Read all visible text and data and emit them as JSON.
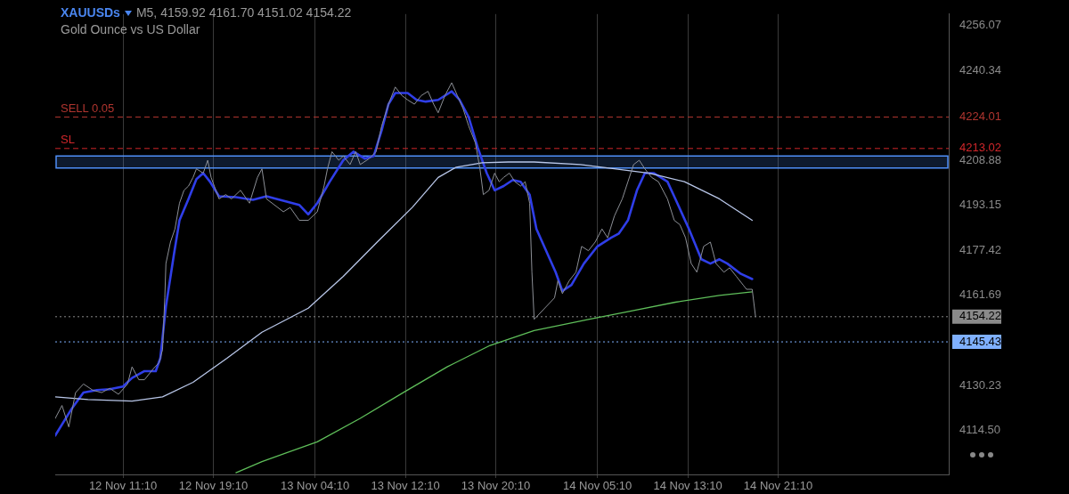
{
  "chart_data": {
    "type": "line",
    "title": "XAUUSDs",
    "subtitle": "Gold Ounce vs US Dollar",
    "annotations": [
      "M5, 4159.92 4161.70 4151.02 4154.22"
    ],
    "xlim": [
      "--11-12T05:10",
      "--11-15T12:16"
    ],
    "xticks": [
      {
        "value": "--11-12T11:10",
        "label": "12 Nov 11:10"
      },
      {
        "value": "--11-12T19:10",
        "label": "12 Nov 19:10"
      },
      {
        "value": "--11-13T04:10",
        "label": "13 Nov 04:10"
      },
      {
        "value": "--11-13T12:10",
        "label": "13 Nov 12:10"
      },
      {
        "value": "--11-13T20:10",
        "label": "13 Nov 20:10"
      },
      {
        "value": "--11-14T05:10",
        "label": "14 Nov 05:10"
      },
      {
        "value": "--11-14T13:10",
        "label": "14 Nov 13:10"
      },
      {
        "value": "--11-14T21:10",
        "label": "14 Nov 21:10"
      }
    ],
    "ylim": [
      4099.1,
      4260.0
    ],
    "yticks": [
      {
        "value": 4114.5,
        "label": "4114.50"
      },
      4130.23,
      4145.43,
      4154.22,
      4161.69,
      4177.42,
      4193.15,
      4208.88,
      4213.02,
      4224.01,
      4240.34,
      4256.07
    ],
    "grid": "x",
    "legend": false,
    "marker": "none",
    "line_style": "solid",
    "series": [
      {
        "color": "#8c8f96",
        "x": [
          "--11-12T05:10",
          "--11-12T05:46",
          "--11-12T06:22",
          "--11-12T06:58",
          "--11-12T07:40",
          "--11-12T08:28",
          "--11-12T09:16",
          "--11-12T10:00",
          "--11-12T10:46",
          "--11-12T11:34",
          "--11-12T11:58",
          "--11-12T12:34",
          "--11-12T13:04",
          "--11-12T13:52",
          "--11-12T14:22",
          "--11-12T14:40",
          "--11-12T14:52",
          "--11-12T14:58",
          "--11-12T15:22",
          "--11-12T15:46",
          "--11-12T16:10",
          "--11-12T16:34",
          "--11-12T16:58",
          "--11-12T17:22",
          "--11-12T17:40",
          "--11-12T18:16",
          "--11-12T18:40",
          "--11-12T18:58",
          "--11-12T19:40",
          "--11-12T20:16",
          "--11-12T20:46",
          "--11-12T21:34",
          "--11-12T22:22",
          "--11-12T23:04",
          "--11-12T23:28",
          "--11-12T23:52",
          "--11-13T01:22",
          "--11-13T01:58",
          "--11-13T02:46",
          "--11-13T03:34",
          "--11-13T04:22",
          "--11-13T04:58",
          "--11-13T05:16",
          "--11-13T05:40",
          "--11-13T06:16",
          "--11-13T06:40",
          "--11-13T07:16",
          "--11-13T07:46",
          "--11-13T08:10",
          "--11-13T08:58",
          "--11-13T09:34",
          "--11-13T10:04",
          "--11-13T10:40",
          "--11-13T11:16",
          "--11-13T11:52",
          "--11-13T12:22",
          "--11-13T12:58",
          "--11-13T13:34",
          "--11-13T14:10",
          "--11-13T14:40",
          "--11-13T15:04",
          "--11-13T15:40",
          "--11-13T16:16",
          "--11-13T16:46",
          "--11-13T17:16",
          "--11-13T17:46",
          "--11-13T18:22",
          "--11-13T18:46",
          "--11-13T19:04",
          "--11-13T19:34",
          "--11-13T20:04",
          "--11-13T20:28",
          "--11-13T20:52",
          "--11-13T21:22",
          "--11-13T21:52",
          "--11-13T22:22",
          "--11-13T22:46",
          "--11-13T23:10",
          "--11-13T23:22",
          "--11-13T23:34",
          "--11-14T01:22",
          "--11-14T01:40",
          "--11-14T02:04",
          "--11-14T02:40",
          "--11-14T03:16",
          "--11-14T03:46",
          "--11-14T04:22",
          "--11-14T04:58",
          "--11-14T05:34",
          "--11-14T06:04",
          "--11-14T06:40",
          "--11-14T07:22",
          "--11-14T07:52",
          "--11-14T08:22",
          "--11-14T08:52",
          "--11-14T09:22",
          "--11-14T09:58",
          "--11-14T10:34",
          "--11-14T11:22",
          "--11-14T11:58",
          "--11-14T12:28",
          "--11-14T12:58",
          "--11-14T13:28",
          "--11-14T13:58",
          "--11-14T14:34",
          "--11-14T15:10",
          "--11-14T15:40",
          "--11-14T16:22",
          "--11-14T16:52",
          "--11-14T17:28",
          "--11-14T18:04",
          "--11-14T18:22",
          "--11-14T18:52",
          "--11-14T19:10"
        ],
        "values": [
          4118.7,
          4123.2,
          4115.7,
          4127.7,
          4130.7,
          4128.6,
          4127.7,
          4129.2,
          4127.1,
          4130.7,
          4136.7,
          4132.2,
          4132.2,
          4136.1,
          4138.2,
          4142.7,
          4160.8,
          4172.8,
          4180.3,
          4184.9,
          4193.9,
          4198.4,
          4199.9,
          4202.9,
          4205.9,
          4204.4,
          4208.9,
          4202.9,
          4195.4,
          4196.9,
          4195.4,
          4198.4,
          4193.9,
          4202.9,
          4205.9,
          4195.4,
          4190.9,
          4192.4,
          4187.9,
          4187.9,
          4190.9,
          4199.9,
          4205.9,
          4211.9,
          4208.9,
          4210.4,
          4207.4,
          4211.9,
          4207.4,
          4209.5,
          4211.9,
          4220.9,
          4228.5,
          4234.5,
          4231.5,
          4230.0,
          4228.5,
          4231.5,
          4233.0,
          4228.5,
          4225.5,
          4231.5,
          4236.0,
          4231.5,
          4227.0,
          4220.9,
          4214.9,
          4205.9,
          4196.9,
          4198.4,
          4204.4,
          4201.4,
          4202.9,
          4204.4,
          4201.4,
          4199.9,
          4201.4,
          4193.9,
          4169.8,
          4153.3,
          4160.8,
          4166.8,
          4162.3,
          4166.8,
          4169.8,
          4178.8,
          4177.3,
          4180.3,
          4184.9,
          4181.8,
          4189.4,
          4195.4,
          4201.4,
          4207.4,
          4208.9,
          4205.9,
          4202.9,
          4201.4,
          4195.4,
          4187.9,
          4186.4,
          4181.8,
          4172.8,
          4169.8,
          4178.8,
          4180.3,
          4172.8,
          4169.8,
          4171.3,
          4168.3,
          4165.3,
          4163.8,
          4163.8,
          4154.2
        ]
      },
      {
        "color": "#b8c6e8",
        "x": [
          "--11-12T05:10",
          "--11-12T08:04",
          "--11-12T11:58",
          "--11-12T14:40",
          "--11-12T17:22",
          "--11-12T20:22",
          "--11-12T23:28",
          "--11-13T03:34",
          "--11-13T06:40",
          "--11-13T09:40",
          "--11-13T12:46",
          "--11-13T15:04",
          "--11-13T16:40",
          "--11-13T18:58",
          "--11-13T21:16",
          "--11-13T23:34",
          "--11-14T03:40",
          "--11-14T06:40",
          "--11-14T09:46",
          "--11-14T12:52",
          "--11-14T15:58",
          "--11-14T18:52"
        ],
        "values": [
          4126.2,
          4125.3,
          4124.7,
          4126.2,
          4131.3,
          4139.7,
          4148.8,
          4157.2,
          4168.3,
          4180.3,
          4192.4,
          4202.9,
          4206.5,
          4208.0,
          4208.3,
          4208.3,
          4207.4,
          4205.9,
          4204.4,
          4201.4,
          4195.4,
          4187.9
        ]
      },
      {
        "color": "#5fbf5a",
        "x": [
          "--11-12T21:10",
          "--11-12T23:28",
          "--11-13T04:22",
          "--11-13T08:10",
          "--11-13T11:58",
          "--11-13T15:52",
          "--11-13T19:40",
          "--11-13T23:34",
          "--11-14T04:22",
          "--11-14T08:16",
          "--11-14T12:04",
          "--11-14T15:58",
          "--11-14T18:52"
        ],
        "values": [
          4099.7,
          4103.6,
          4110.5,
          4118.7,
          4127.7,
          4136.7,
          4144.2,
          4149.4,
          4153.3,
          4156.3,
          4159.3,
          4161.7,
          4162.9
        ]
      },
      {
        "color": "#2f3ee8",
        "x": [
          "--11-12T05:10",
          "--11-12T06:34",
          "--11-12T07:40",
          "--11-12T08:52",
          "--11-12T10:00",
          "--11-12T11:10",
          "--11-12T11:58",
          "--11-12T13:04",
          "--11-12T14:04",
          "--11-12T14:28",
          "--11-12T14:58",
          "--11-12T15:40",
          "--11-12T16:10",
          "--11-12T16:58",
          "--11-12T17:40",
          "--11-12T18:16",
          "--11-12T18:52",
          "--11-12T19:40",
          "--11-12T21:10",
          "--11-12T22:40",
          "--11-12T23:52",
          "--11-13T02:46",
          "--11-13T03:34",
          "--11-13T04:22",
          "--11-13T05:28",
          "--11-13T06:40",
          "--11-13T07:34",
          "--11-13T08:34",
          "--11-13T09:22",
          "--11-13T10:04",
          "--11-13T10:40",
          "--11-13T11:16",
          "--11-13T12:22",
          "--11-13T13:10",
          "--11-13T13:58",
          "--11-13T15:04",
          "--11-13T16:16",
          "--11-13T16:58",
          "--11-13T17:46",
          "--11-13T18:34",
          "--11-13T19:22",
          "--11-13T20:04",
          "--11-13T20:52",
          "--11-13T21:40",
          "--11-13T22:22",
          "--11-13T23:10",
          "--11-13T23:46",
          "--11-14T01:28",
          "--11-14T02:04",
          "--11-14T02:52",
          "--11-14T03:58",
          "--11-14T05:10",
          "--11-14T06:22",
          "--11-14T07:04",
          "--11-14T07:52",
          "--11-14T08:40",
          "--11-14T09:22",
          "--11-14T10:10",
          "--11-14T11:22",
          "--11-14T12:04",
          "--11-14T13:16",
          "--11-14T14:22",
          "--11-14T15:10",
          "--11-14T15:58",
          "--11-14T16:40",
          "--11-14T17:52",
          "--11-14T18:52"
        ],
        "values": [
          4112.7,
          4121.7,
          4127.7,
          4128.6,
          4128.9,
          4129.8,
          4132.8,
          4135.2,
          4135.2,
          4139.7,
          4157.8,
          4175.8,
          4187.9,
          4195.4,
          4202.3,
          4204.4,
          4201.4,
          4196.3,
          4196.0,
          4195.1,
          4196.3,
          4193.3,
          4190.0,
          4193.9,
          4201.4,
          4208.9,
          4211.9,
          4209.5,
          4210.4,
          4219.4,
          4228.5,
          4232.4,
          4232.4,
          4230.0,
          4229.4,
          4230.0,
          4233.0,
          4230.0,
          4224.0,
          4213.4,
          4204.4,
          4198.4,
          4199.9,
          4202.0,
          4201.4,
          4196.9,
          4184.9,
          4169.8,
          4163.2,
          4165.3,
          4172.8,
          4178.8,
          4181.8,
          4183.3,
          4187.9,
          4198.4,
          4204.4,
          4204.4,
          4201.4,
          4195.4,
          4184.9,
          4174.3,
          4172.8,
          4174.3,
          4172.8,
          4169.2,
          4167.4
        ]
      }
    ],
    "ref_lines": [
      {
        "axis": "y",
        "value": 4224.01,
        "label": "SELL 0.05",
        "color": "#b0352f",
        "line_style": "dashed"
      },
      {
        "axis": "y",
        "value": 4213.02,
        "label": "SL",
        "color": "#d0262a",
        "line_style": "dashed"
      },
      {
        "axis": "y",
        "value": 4154.22,
        "color": "#8a8a8a",
        "line_style": "dotted"
      },
      {
        "axis": "y",
        "value": 4145.43,
        "color": "#7fb0ff",
        "line_style": "dotted"
      }
    ],
    "bands": [
      {
        "axis": "y",
        "from": 4206.2,
        "to": 4210.4,
        "color": "#4f8ff7"
      }
    ]
  }
}
